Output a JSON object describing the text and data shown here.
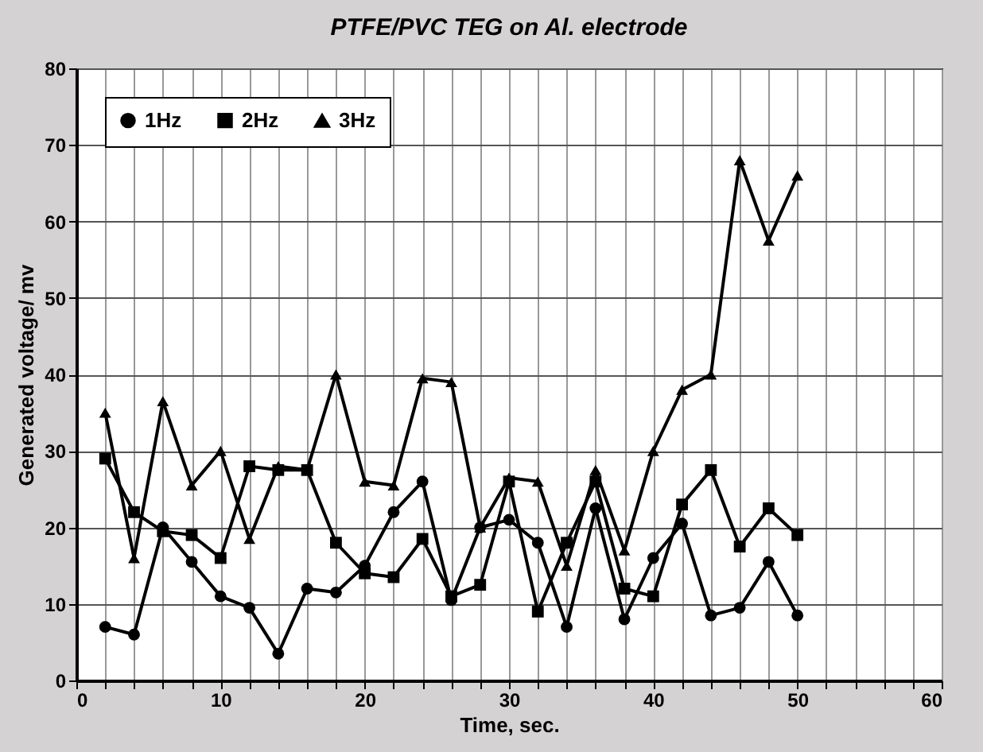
{
  "chart_data": {
    "type": "line",
    "title": "PTFE/PVC TEG on  Al. electrode",
    "xlabel": "Time, sec.",
    "ylabel": "Generated voltage/ mv",
    "x": [
      2,
      4,
      6,
      8,
      10,
      12,
      14,
      16,
      18,
      20,
      22,
      24,
      26,
      28,
      30,
      32,
      34,
      36,
      38,
      40,
      42,
      44,
      46,
      48,
      50
    ],
    "series": [
      {
        "name": "1Hz",
        "color": "#000000",
        "marker": "circle",
        "values": [
          7,
          6,
          20,
          15.5,
          11,
          9.5,
          3.5,
          12,
          11.5,
          15,
          22,
          26,
          10.5,
          20,
          21,
          18,
          7,
          22.5,
          8,
          16,
          20.5,
          8.5,
          9.5,
          15.5,
          8.5
        ]
      },
      {
        "name": "2Hz",
        "color": "#000000",
        "marker": "square",
        "values": [
          29,
          22,
          19.5,
          19,
          16,
          28,
          27.5,
          27.5,
          18,
          14,
          13.5,
          18.5,
          11,
          12.5,
          26,
          9,
          18,
          26,
          12,
          11,
          23,
          27.5,
          17.5,
          22.5,
          19
        ]
      },
      {
        "name": "3Hz",
        "color": "#000000",
        "marker": "triangle",
        "values": [
          35,
          16,
          36.5,
          25.5,
          30,
          18.5,
          28,
          27.5,
          40,
          26,
          25.5,
          39.5,
          39,
          20,
          26.5,
          26,
          15,
          27.5,
          17,
          30,
          38,
          40,
          68,
          57.5,
          66
        ]
      }
    ],
    "xlim": [
      0,
      60
    ],
    "xticks": [
      0,
      {
        "value": 2,
        "label": null
      },
      {
        "value": 4,
        "label": null
      },
      {
        "value": 6,
        "label": null
      },
      {
        "value": 8,
        "label": null
      },
      10,
      {
        "value": 12,
        "label": null
      },
      {
        "value": 14,
        "label": null
      },
      {
        "value": 16,
        "label": null
      },
      {
        "value": 18,
        "label": null
      },
      20,
      {
        "value": 22,
        "label": null
      },
      {
        "value": 24,
        "label": null
      },
      {
        "value": 26,
        "label": null
      },
      {
        "value": 28,
        "label": null
      },
      30,
      {
        "value": 32,
        "label": null
      },
      {
        "value": 34,
        "label": null
      },
      {
        "value": 36,
        "label": null
      },
      {
        "value": 38,
        "label": null
      },
      40,
      {
        "value": 42,
        "label": null
      },
      {
        "value": 44,
        "label": null
      },
      {
        "value": 46,
        "label": null
      },
      {
        "value": 48,
        "label": null
      },
      50,
      {
        "value": 52,
        "label": null
      },
      {
        "value": 54,
        "label": null
      },
      {
        "value": 56,
        "label": null
      },
      {
        "value": 58,
        "label": null
      },
      60
    ],
    "ylim": [
      0,
      80
    ],
    "yticks": [
      0,
      10,
      20,
      30,
      40,
      50,
      60,
      70,
      80
    ],
    "grid": true,
    "legend": "top left",
    "line_style": "solid"
  }
}
